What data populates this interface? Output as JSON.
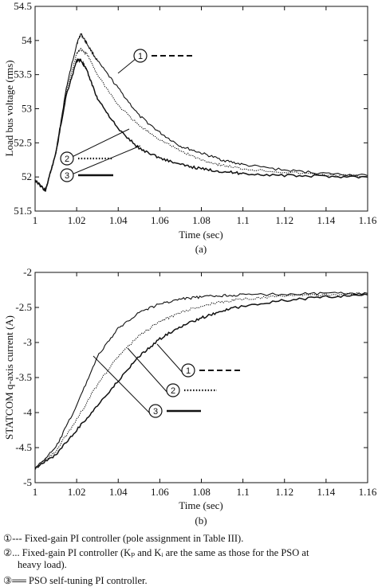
{
  "chart_data": [
    {
      "type": "line",
      "caption": "(a)",
      "xlabel": "Time (sec)",
      "ylabel": "Load bus voltage (rms)",
      "xlim": [
        1,
        1.16
      ],
      "ylim": [
        51.5,
        54.5
      ],
      "xticks": [
        "1",
        "1.02",
        "1.04",
        "1.06",
        "1.08",
        "1.1",
        "1.12",
        "1.14",
        "1.16"
      ],
      "yticks": [
        "51.5",
        "52",
        "52.5",
        "53",
        "53.5",
        "54",
        "54.5"
      ],
      "grid": false,
      "series": [
        {
          "marker": "1",
          "style": "dashed",
          "x": [
            1,
            1.005,
            1.01,
            1.015,
            1.02,
            1.022,
            1.025,
            1.03,
            1.04,
            1.05,
            1.06,
            1.07,
            1.08,
            1.09,
            1.1,
            1.12,
            1.14,
            1.16
          ],
          "y": [
            51.95,
            51.8,
            52.35,
            53.3,
            53.95,
            54.1,
            53.95,
            53.7,
            53.3,
            52.9,
            52.65,
            52.45,
            52.35,
            52.25,
            52.18,
            52.1,
            52.05,
            52.02
          ]
        },
        {
          "marker": "2",
          "style": "dotted",
          "x": [
            1,
            1.005,
            1.01,
            1.015,
            1.02,
            1.022,
            1.025,
            1.03,
            1.04,
            1.05,
            1.06,
            1.07,
            1.08,
            1.09,
            1.1,
            1.12,
            1.14,
            1.16
          ],
          "y": [
            51.95,
            51.8,
            52.35,
            53.25,
            53.8,
            53.88,
            53.8,
            53.5,
            53.05,
            52.75,
            52.55,
            52.38,
            52.25,
            52.17,
            52.12,
            52.07,
            52.03,
            52.01
          ]
        },
        {
          "marker": "3",
          "style": "solid",
          "x": [
            1,
            1.005,
            1.01,
            1.015,
            1.02,
            1.022,
            1.025,
            1.03,
            1.04,
            1.05,
            1.06,
            1.07,
            1.08,
            1.09,
            1.1,
            1.12,
            1.14,
            1.16
          ],
          "y": [
            51.95,
            51.8,
            52.35,
            53.2,
            53.7,
            53.72,
            53.55,
            53.15,
            52.7,
            52.42,
            52.28,
            52.18,
            52.12,
            52.08,
            52.05,
            52.02,
            52.01,
            52.0
          ]
        }
      ],
      "markers": [
        {
          "label": "1",
          "style": "dashed"
        },
        {
          "label": "2",
          "style": "dotted"
        },
        {
          "label": "3",
          "style": "solid"
        }
      ]
    },
    {
      "type": "line",
      "caption": "(b)",
      "xlabel": "Time (sec)",
      "ylabel": "STATCOM q-axis current (A)",
      "xlim": [
        1,
        1.16
      ],
      "ylim": [
        -5,
        -2
      ],
      "xticks": [
        "1",
        "1.02",
        "1.04",
        "1.06",
        "1.08",
        "1.1",
        "1.12",
        "1.14",
        "1.16"
      ],
      "yticks": [
        "-2",
        "-2.5",
        "-3",
        "-3.5",
        "-4",
        "-4.5",
        "-5"
      ],
      "grid": false,
      "series": [
        {
          "marker": "1",
          "style": "dashed",
          "x": [
            1,
            1.01,
            1.02,
            1.03,
            1.04,
            1.05,
            1.06,
            1.07,
            1.08,
            1.09,
            1.1,
            1.12,
            1.14,
            1.16
          ],
          "y": [
            -4.8,
            -4.5,
            -3.9,
            -3.2,
            -2.8,
            -2.57,
            -2.45,
            -2.38,
            -2.35,
            -2.33,
            -2.32,
            -2.31,
            -2.3,
            -2.3
          ]
        },
        {
          "marker": "2",
          "style": "dotted",
          "x": [
            1,
            1.01,
            1.02,
            1.03,
            1.04,
            1.05,
            1.06,
            1.07,
            1.08,
            1.09,
            1.1,
            1.12,
            1.14,
            1.16
          ],
          "y": [
            -4.8,
            -4.55,
            -4.1,
            -3.6,
            -3.2,
            -2.9,
            -2.7,
            -2.57,
            -2.48,
            -2.42,
            -2.38,
            -2.34,
            -2.32,
            -2.3
          ]
        },
        {
          "marker": "3",
          "style": "solid",
          "x": [
            1,
            1.01,
            1.02,
            1.03,
            1.04,
            1.05,
            1.06,
            1.07,
            1.08,
            1.09,
            1.1,
            1.12,
            1.14,
            1.16
          ],
          "y": [
            -4.8,
            -4.6,
            -4.25,
            -3.9,
            -3.55,
            -3.2,
            -2.95,
            -2.77,
            -2.65,
            -2.55,
            -2.48,
            -2.4,
            -2.35,
            -2.32
          ]
        }
      ],
      "markers": [
        {
          "label": "1",
          "style": "dashed"
        },
        {
          "label": "2",
          "style": "dotted"
        },
        {
          "label": "3",
          "style": "solid"
        }
      ]
    }
  ],
  "legend": {
    "line1": "①--- Fixed-gain PI controller (pole assignment in Table III).",
    "line2": "②... Fixed-gain PI controller (Kₚ and Kᵢ are the same as those for the PSO at",
    "line2b": "heavy load).",
    "line3": "③══ PSO self-tuning PI controller."
  }
}
